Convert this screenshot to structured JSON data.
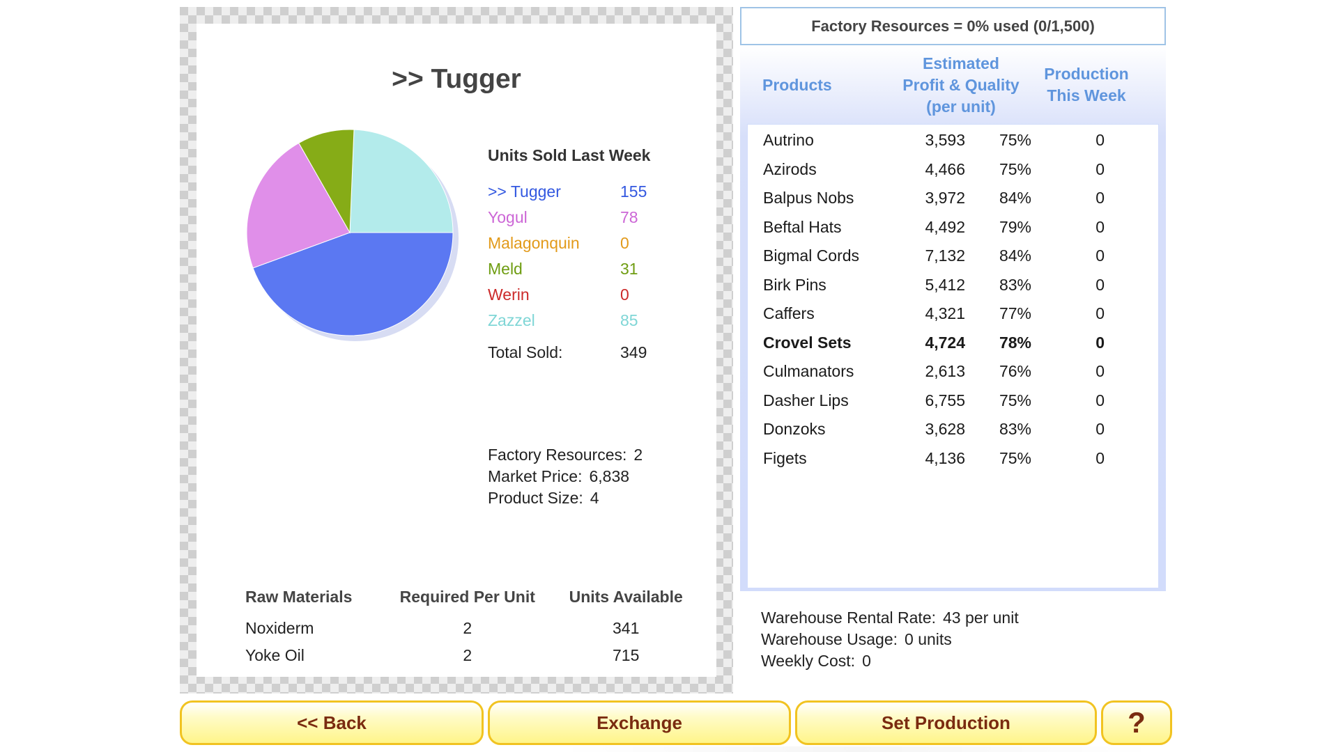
{
  "product": {
    "title": ">> Tugger"
  },
  "sales": {
    "heading": "Units Sold Last Week",
    "items": [
      {
        "name": ">> Tugger",
        "value": "155",
        "units": 155,
        "color": "#3358e0",
        "slice_color": "#5b78f2"
      },
      {
        "name": "Yogul",
        "value": "78",
        "units": 78,
        "color": "#cc66d6",
        "slice_color": "#e08fe9"
      },
      {
        "name": "Malagonquin",
        "value": "0",
        "units": 0,
        "color": "#e29a1a",
        "slice_color": "#e29a1a"
      },
      {
        "name": "Meld",
        "value": "31",
        "units": 31,
        "color": "#6f9d12",
        "slice_color": "#86ac17"
      },
      {
        "name": "Werin",
        "value": "0",
        "units": 0,
        "color": "#cc2a2a",
        "slice_color": "#cc2a2a"
      },
      {
        "name": "Zazzel",
        "value": "85",
        "units": 85,
        "color": "#7fd6d6",
        "slice_color": "#b3ebeb"
      }
    ],
    "total_label": "Total Sold:",
    "total_value": "349"
  },
  "info": {
    "resources_label": "Factory Resources:",
    "resources_value": "2",
    "price_label": "Market Price:",
    "price_value": "6,838",
    "size_label": "Product Size:",
    "size_value": "4"
  },
  "raw_materials": {
    "headers": [
      "Raw Materials",
      "Required Per Unit",
      "Units Available"
    ],
    "rows": [
      {
        "name": "Noxiderm",
        "required": "2",
        "available": "341"
      },
      {
        "name": "Yoke Oil",
        "required": "2",
        "available": "715"
      }
    ]
  },
  "capacity": {
    "text": "Factory Resources = 0% used (0/1,500)"
  },
  "products_table": {
    "headers": {
      "products": "Products",
      "profit_line1": "Estimated",
      "profit_line2": "Profit & Quality",
      "profit_line3": "(per unit)",
      "production_line1": "Production",
      "production_line2": "This Week"
    },
    "rows": [
      {
        "name": "Autrino",
        "profit": "3,593",
        "quality": "75%",
        "production": "0"
      },
      {
        "name": "Azirods",
        "profit": "4,466",
        "quality": "75%",
        "production": "0"
      },
      {
        "name": "Balpus Nobs",
        "profit": "3,972",
        "quality": "84%",
        "production": "0"
      },
      {
        "name": "Beftal Hats",
        "profit": "4,492",
        "quality": "79%",
        "production": "0"
      },
      {
        "name": "Bigmal Cords",
        "profit": "7,132",
        "quality": "84%",
        "production": "0"
      },
      {
        "name": "Birk Pins",
        "profit": "5,412",
        "quality": "83%",
        "production": "0"
      },
      {
        "name": "Caffers",
        "profit": "4,321",
        "quality": "77%",
        "production": "0"
      },
      {
        "name": "Crovel Sets",
        "profit": "4,724",
        "quality": "78%",
        "production": "0",
        "bold": true
      },
      {
        "name": "Culmanators",
        "profit": "2,613",
        "quality": "76%",
        "production": "0"
      },
      {
        "name": "Dasher Lips",
        "profit": "6,755",
        "quality": "75%",
        "production": "0"
      },
      {
        "name": "Donzoks",
        "profit": "3,628",
        "quality": "83%",
        "production": "0"
      },
      {
        "name": "Figets",
        "profit": "4,136",
        "quality": "75%",
        "production": "0"
      }
    ]
  },
  "warehouse": {
    "rate_label": "Warehouse Rental Rate:",
    "rate_value": "43 per unit",
    "usage_label": "Warehouse Usage:",
    "usage_value": "0 units",
    "cost_label": "Weekly Cost:",
    "cost_value": "0"
  },
  "buttons": {
    "back": "<< Back",
    "exchange": "Exchange",
    "set_production": "Set Production",
    "help": "?"
  }
}
